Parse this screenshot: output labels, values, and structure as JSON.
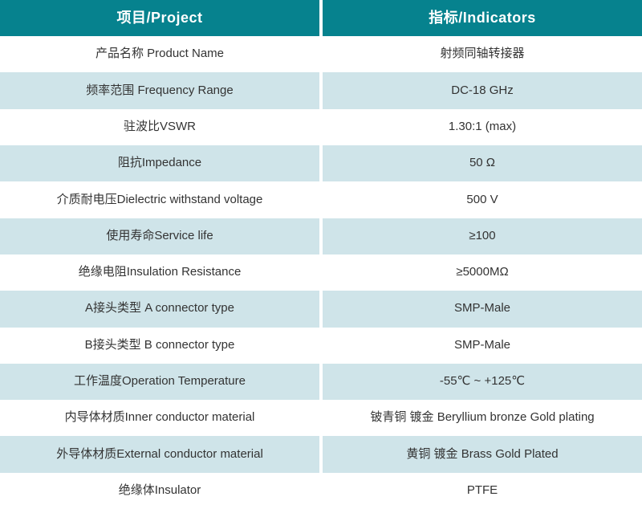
{
  "table": {
    "header": {
      "project": "项目/Project",
      "indicators": "指标/Indicators"
    },
    "rows": [
      {
        "project": "产品名称 Product Name",
        "indicator": "射频同轴转接器"
      },
      {
        "project": "频率范围 Frequency Range",
        "indicator": "DC-18 GHz"
      },
      {
        "project": "驻波比VSWR",
        "indicator": "1.30:1 (max)"
      },
      {
        "project": "阻抗Impedance",
        "indicator": "50 Ω"
      },
      {
        "project": "介质耐电压Dielectric withstand voltage",
        "indicator": "500 V"
      },
      {
        "project": "使用寿命Service life",
        "indicator": "≥100"
      },
      {
        "project": "绝缘电阻Insulation Resistance",
        "indicator": "≥5000MΩ"
      },
      {
        "project": "A接头类型 A connector type",
        "indicator": "SMP-Male"
      },
      {
        "project": "B接头类型 B connector type",
        "indicator": "SMP-Male"
      },
      {
        "project": "工作温度Operation Temperature",
        "indicator": "-55℃ ~ +125℃"
      },
      {
        "project": "内导体材质Inner conductor material",
        "indicator": "铍青铜 镀金 Beryllium bronze Gold plating"
      },
      {
        "project": "外导体材质External conductor material",
        "indicator": "黄铜 镀金 Brass Gold Plated"
      },
      {
        "project": "绝缘体Insulator",
        "indicator": "PTFE"
      }
    ],
    "colors": {
      "header_bg": "#06828e",
      "header_text": "#ffffff",
      "row_bg": "#ffffff",
      "row_alt_bg": "#cfe4e9",
      "body_text": "#333333"
    }
  }
}
